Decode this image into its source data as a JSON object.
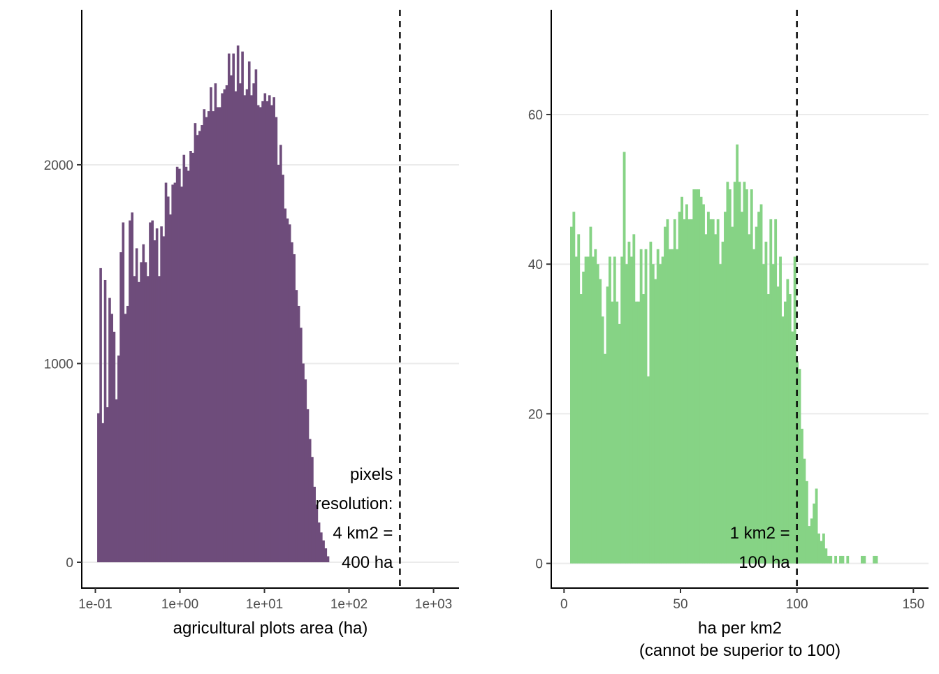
{
  "chart_data": [
    {
      "type": "bar",
      "panel": "left",
      "xscale": "log10",
      "xlabel": "agricultural plots area (ha)",
      "ylabel": "",
      "xlim": [
        0.069,
        2000
      ],
      "ylim": [
        -130,
        2780
      ],
      "xticks": [
        0.1,
        1,
        10,
        100,
        1000
      ],
      "xtick_labels": [
        "1e-01",
        "1e+00",
        "1e+01",
        "1e+02",
        "1e+03"
      ],
      "yticks": [
        0,
        1000,
        2000
      ],
      "ytick_labels": [
        "0",
        "1000",
        "2000"
      ],
      "bin_range": [
        0.105,
        58
      ],
      "grid": "horizontal major",
      "legend": "none",
      "color": "#6e4c7b",
      "values": [
        750,
        1480,
        700,
        1420,
        780,
        1330,
        1250,
        1160,
        820,
        1040,
        1560,
        1710,
        1250,
        1290,
        1720,
        1760,
        1440,
        1580,
        1410,
        1510,
        1600,
        1510,
        1440,
        1710,
        1720,
        1620,
        1680,
        1440,
        1690,
        1640,
        1910,
        1840,
        1750,
        1900,
        1910,
        1990,
        1980,
        1890,
        2050,
        1990,
        1970,
        2070,
        2060,
        2210,
        2150,
        2170,
        2200,
        2280,
        2240,
        2270,
        2390,
        2270,
        2410,
        2290,
        2290,
        2360,
        2380,
        2400,
        2560,
        2450,
        2560,
        2370,
        2600,
        2410,
        2570,
        2350,
        2380,
        2520,
        2350,
        2410,
        2480,
        2300,
        2290,
        2320,
        2360,
        2320,
        2350,
        2300,
        2340,
        2240,
        2000,
        2100,
        1950,
        1780,
        1730,
        1700,
        1610,
        1550,
        1370,
        1290,
        1180,
        1000,
        920,
        770,
        620,
        530,
        380,
        290,
        200,
        150,
        110,
        70,
        30
      ],
      "reference_line": {
        "x": 400,
        "style": "dashed",
        "label": [
          "pixels",
          "resolution:",
          "4 km2 =",
          "400 ha"
        ]
      }
    },
    {
      "type": "bar",
      "panel": "right",
      "xscale": "linear",
      "xlabel": [
        "ha per km2",
        "(cannot be superior to 100)"
      ],
      "ylabel": "",
      "xlim": [
        -5.5,
        156.5
      ],
      "ylim": [
        -3.3,
        74
      ],
      "xticks": [
        0,
        50,
        100,
        150
      ],
      "xtick_labels": [
        "0",
        "50",
        "100",
        "150"
      ],
      "yticks": [
        0,
        20,
        40,
        60
      ],
      "ytick_labels": [
        "0",
        "20",
        "40",
        "60"
      ],
      "bin_range": [
        2.6,
        147
      ],
      "grid": "horizontal major",
      "legend": "none",
      "color": "#86d385",
      "values": [
        45,
        47,
        41,
        44,
        36,
        39,
        41,
        41,
        45,
        41,
        42,
        40,
        38,
        33,
        28,
        37,
        41,
        35,
        41,
        35,
        32,
        41,
        55,
        40,
        43,
        41,
        44,
        35,
        35,
        42,
        36,
        42,
        25,
        43,
        40,
        38,
        42,
        40,
        41,
        45,
        46,
        42,
        42,
        46,
        42,
        47,
        49,
        46,
        48,
        46,
        46,
        50,
        50,
        50,
        49,
        48,
        44,
        47,
        46,
        46,
        44,
        46,
        40,
        43,
        47,
        51,
        50,
        45,
        51,
        56,
        51,
        47,
        51,
        50,
        44,
        50,
        42,
        45,
        47,
        48,
        40,
        43,
        36,
        46,
        40,
        46,
        37,
        41,
        33,
        35,
        38,
        36,
        31,
        41,
        27,
        26,
        18,
        14,
        11,
        5,
        6,
        8,
        10,
        4,
        3,
        4,
        2,
        1,
        1,
        0,
        1,
        0,
        1,
        1,
        0,
        1,
        0,
        0,
        0,
        0,
        0,
        1,
        1,
        0,
        0,
        0,
        1,
        1,
        0,
        0,
        0,
        0,
        0,
        0,
        0,
        0,
        0,
        0,
        0,
        0
      ],
      "reference_line": {
        "x": 100,
        "style": "dashed",
        "label": [
          "1 km2 =",
          "100 ha"
        ]
      }
    }
  ]
}
